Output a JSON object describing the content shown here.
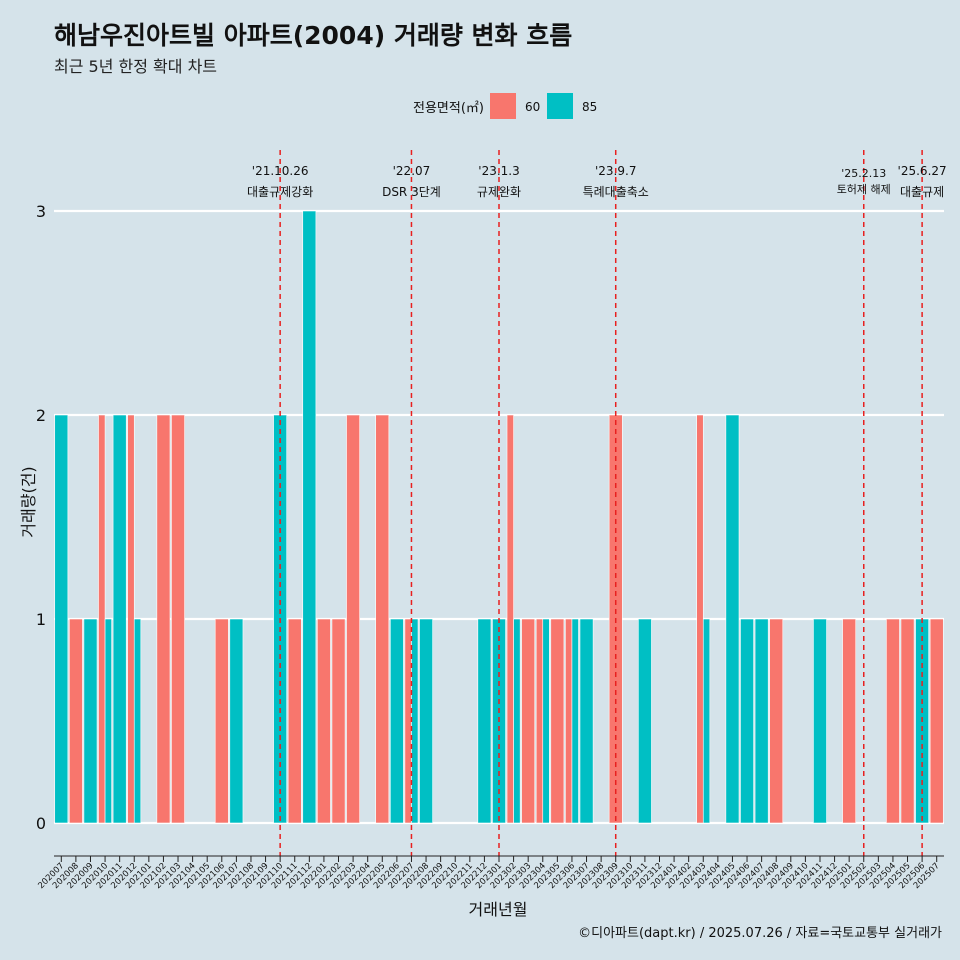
{
  "chart_data": {
    "type": "bar",
    "title": "해남우진아트빌 아파트(2004) 거래량 변화 흐름",
    "subtitle": "최근 5년 한정 확대 차트",
    "xlabel": "거래년월",
    "ylabel": "거래량(건)",
    "caption": "©디아파트(dapt.kr) / 2025.07.26 / 자료=국토교통부 실거래가",
    "legend": {
      "title": "전용면적(㎡)",
      "position": "top",
      "entries": [
        {
          "label": "60",
          "color": "#f8766d"
        },
        {
          "label": "85",
          "color": "#00bfc4"
        }
      ]
    },
    "ylim": [
      0,
      3
    ],
    "yticks": [
      0,
      1,
      2,
      3
    ],
    "grid": true,
    "categories": [
      "202007",
      "202008",
      "202009",
      "202010",
      "202011",
      "202012",
      "202101",
      "202102",
      "202103",
      "202104",
      "202105",
      "202106",
      "202107",
      "202108",
      "202109",
      "202110",
      "202111",
      "202112",
      "202201",
      "202202",
      "202203",
      "202204",
      "202205",
      "202206",
      "202207",
      "202208",
      "202209",
      "202210",
      "202211",
      "202212",
      "202301",
      "202302",
      "202303",
      "202304",
      "202305",
      "202306",
      "202307",
      "202308",
      "202309",
      "202310",
      "202311",
      "202312",
      "202401",
      "202402",
      "202403",
      "202404",
      "202405",
      "202406",
      "202407",
      "202408",
      "202409",
      "202410",
      "202411",
      "202412",
      "202501",
      "202502",
      "202503",
      "202504",
      "202505",
      "202506",
      "202507"
    ],
    "series": [
      {
        "name": "60",
        "color": "#f8766d",
        "values": [
          0,
          1,
          0,
          2,
          0,
          2,
          0,
          2,
          2,
          0,
          0,
          1,
          0,
          0,
          0,
          0,
          1,
          0,
          1,
          1,
          2,
          0,
          2,
          0,
          1,
          0,
          0,
          0,
          0,
          0,
          0,
          2,
          1,
          1,
          1,
          1,
          0,
          0,
          2,
          0,
          0,
          0,
          0,
          0,
          2,
          0,
          0,
          0,
          0,
          1,
          0,
          0,
          0,
          0,
          1,
          0,
          0,
          1,
          1,
          0,
          1
        ]
      },
      {
        "name": "85",
        "color": "#00bfc4",
        "values": [
          2,
          0,
          1,
          1,
          2,
          1,
          0,
          0,
          0,
          0,
          0,
          0,
          1,
          0,
          0,
          2,
          0,
          3,
          0,
          0,
          0,
          0,
          0,
          1,
          1,
          1,
          0,
          0,
          0,
          1,
          1,
          1,
          0,
          1,
          0,
          1,
          1,
          0,
          0,
          0,
          1,
          0,
          0,
          0,
          1,
          0,
          2,
          1,
          1,
          0,
          0,
          0,
          1,
          0,
          0,
          0,
          0,
          0,
          0,
          1,
          0
        ]
      }
    ],
    "annotations": [
      {
        "category": "202110",
        "date": "'21.10.26",
        "label": "대출규제강화"
      },
      {
        "category": "202207",
        "date": "'22.07",
        "label": "DSR 3단계"
      },
      {
        "category": "202301",
        "date": "'23.1.3",
        "label": "규제완화"
      },
      {
        "category": "202309",
        "date": "'23.9.7",
        "label": "특례대출축소"
      },
      {
        "category": "202502",
        "date": "'25.2.13",
        "label": "토허제 해제"
      },
      {
        "category": "202506",
        "date": "'25.6.27",
        "label": "대출규제"
      }
    ]
  }
}
